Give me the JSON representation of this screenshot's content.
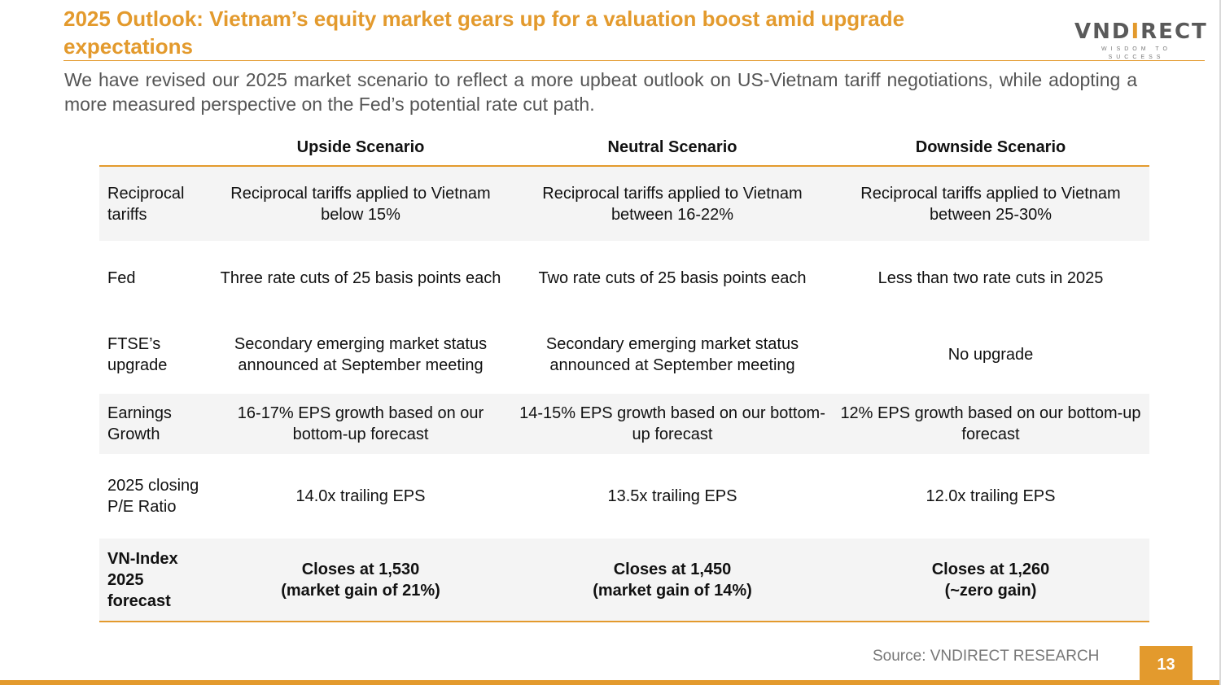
{
  "slide": {
    "title": "2025 Outlook: Vietnam’s equity market gears up for a valuation boost amid upgrade expectations",
    "intro": "We have revised our 2025 market scenario to reflect a more upbeat outlook on US-Vietnam tariff negotiations, while adopting a more measured perspective on the Fed’s potential rate cut path.",
    "source": "Source: VNDIRECT RESEARCH",
    "page_number": "13"
  },
  "logo": {
    "word_prefix": "VND",
    "word_accent": "I",
    "word_suffix": "RECT",
    "tagline": "WISDOM TO SUCCESS"
  },
  "table": {
    "headers": [
      "",
      "Upside Scenario",
      "Neutral Scenario",
      "Downside Scenario"
    ],
    "rows": [
      {
        "label": "Reciprocal tariffs",
        "upside": "Reciprocal tariffs applied to Vietnam below 15%",
        "neutral": "Reciprocal tariffs applied to Vietnam between 16-22%",
        "downside": "Reciprocal tariffs applied to Vietnam between 25-30%"
      },
      {
        "label": "Fed",
        "upside": "Three rate cuts of 25 basis points each",
        "neutral": "Two rate cuts of 25 basis points each",
        "downside": "Less than two rate cuts in 2025"
      },
      {
        "label": "FTSE’s upgrade",
        "upside": "Secondary emerging market status announced at September meeting",
        "neutral": "Secondary emerging market status announced at September meeting",
        "downside": "No upgrade"
      },
      {
        "label": "Earnings Growth",
        "upside": "16-17% EPS growth based on our bottom-up forecast",
        "neutral": "14-15% EPS growth based on our bottom-up forecast",
        "downside": "12% EPS growth based on our bottom-up forecast"
      },
      {
        "label": "2025 closing P/E Ratio",
        "upside": "14.0x trailing EPS",
        "neutral": "13.5x trailing EPS",
        "downside": "12.0x trailing EPS"
      },
      {
        "label": "VN-Index 2025 forecast",
        "upside_line1": "Closes at 1,530",
        "upside_line2": "(market gain of 21%)",
        "neutral_line1": "Closes at 1,450",
        "neutral_line2": "(market gain of 14%)",
        "downside_line1": "Closes at 1,260",
        "downside_line2": "(~zero gain)"
      }
    ]
  },
  "colors": {
    "accent": "#e39a2d",
    "shade": "#f4f4f4",
    "intro_text": "#555555"
  }
}
